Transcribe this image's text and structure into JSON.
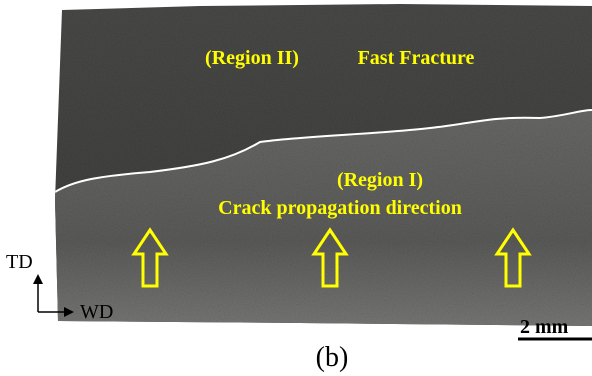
{
  "labels": {
    "region_2": "(Region II)",
    "fast_fracture": "Fast Fracture",
    "region_1": "(Region I)",
    "crack_direction": "Crack propagation direction"
  },
  "axes": {
    "vertical": "TD",
    "horizontal": "WD"
  },
  "scale_bar": "2 mm",
  "caption": "(b)"
}
